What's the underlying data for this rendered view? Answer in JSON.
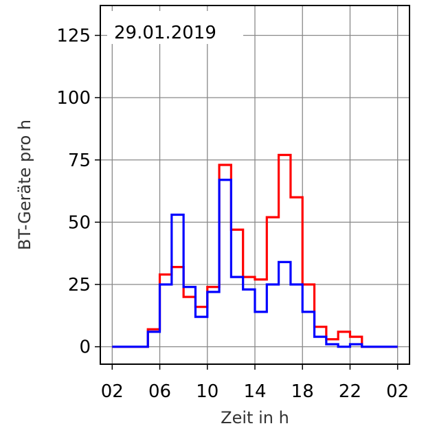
{
  "chart_data": {
    "type": "line",
    "step": true,
    "title": "",
    "annotation": "29.01.2019",
    "xlabel": "Zeit in h",
    "ylabel": "BT-Geräte pro h",
    "ylim": [
      -7,
      137
    ],
    "xlim": [
      0,
      26
    ],
    "yticks": [
      0,
      25,
      50,
      75,
      100,
      125
    ],
    "ytick_labels": [
      "0",
      "25",
      "50",
      "75",
      "100",
      "125"
    ],
    "xticks": [
      1,
      5,
      9,
      13,
      17,
      21,
      25
    ],
    "xtick_labels": [
      "02",
      "06",
      "10",
      "14",
      "18",
      "22",
      "02"
    ],
    "grid": true,
    "legend": "none",
    "hours": [
      "02",
      "03",
      "04",
      "05",
      "06",
      "07",
      "08",
      "09",
      "10",
      "11",
      "12",
      "13",
      "14",
      "15",
      "16",
      "17",
      "18",
      "19",
      "20",
      "21",
      "22",
      "23",
      "00",
      "01"
    ],
    "series": [
      {
        "color": "#ff0000",
        "values": [
          0,
          0,
          0,
          7,
          29,
          32,
          20,
          16,
          24,
          73,
          47,
          28,
          27,
          52,
          77,
          60,
          25,
          8,
          3,
          6,
          4,
          0,
          0,
          0
        ]
      },
      {
        "color": "#0000ff",
        "values": [
          0,
          0,
          0,
          6,
          25,
          53,
          24,
          12,
          22,
          67,
          28,
          23,
          14,
          25,
          34,
          25,
          14,
          4,
          1,
          0,
          1,
          0,
          0,
          0
        ]
      }
    ]
  }
}
